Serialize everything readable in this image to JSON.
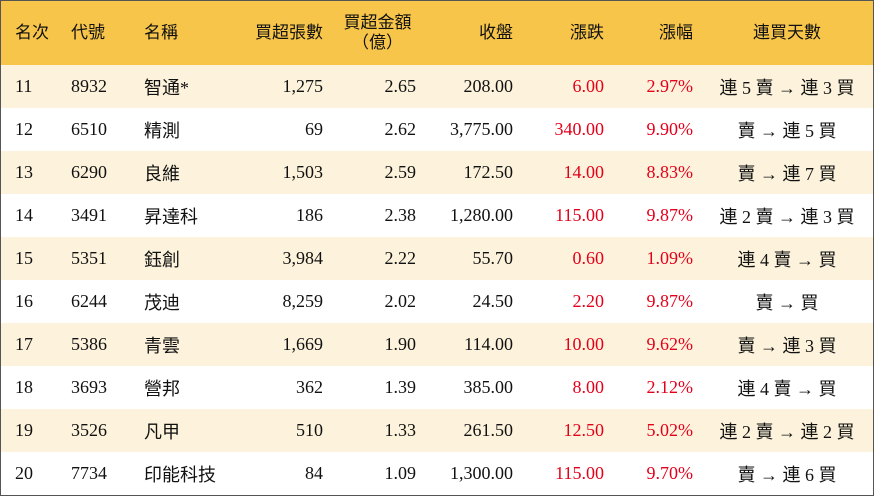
{
  "table": {
    "headers": [
      "名次",
      "代號",
      "名稱",
      "買超張數",
      [
        "買超金額",
        "（億）"
      ],
      "收盤",
      "漲跌",
      "漲幅",
      "連買天數"
    ],
    "rows": [
      [
        "11",
        "8932",
        "智通*",
        "1,275",
        "2.65",
        "208.00",
        "6.00",
        "2.97%",
        "連 5 賣 → 連 3 買"
      ],
      [
        "12",
        "6510",
        "精測",
        "69",
        "2.62",
        "3,775.00",
        "340.00",
        "9.90%",
        "賣 → 連 5 買"
      ],
      [
        "13",
        "6290",
        "良維",
        "1,503",
        "2.59",
        "172.50",
        "14.00",
        "8.83%",
        "賣 → 連 7 買"
      ],
      [
        "14",
        "3491",
        "昇達科",
        "186",
        "2.38",
        "1,280.00",
        "115.00",
        "9.87%",
        "連 2 賣 → 連 3 買"
      ],
      [
        "15",
        "5351",
        "鈺創",
        "3,984",
        "2.22",
        "55.70",
        "0.60",
        "1.09%",
        "連 4 賣 → 買"
      ],
      [
        "16",
        "6244",
        "茂迪",
        "8,259",
        "2.02",
        "24.50",
        "2.20",
        "9.87%",
        "賣 → 買"
      ],
      [
        "17",
        "5386",
        "青雲",
        "1,669",
        "1.90",
        "114.00",
        "10.00",
        "9.62%",
        "賣 → 連 3 買"
      ],
      [
        "18",
        "3693",
        "營邦",
        "362",
        "1.39",
        "385.00",
        "8.00",
        "2.12%",
        "連 4 賣 → 買"
      ],
      [
        "19",
        "3526",
        "凡甲",
        "510",
        "1.33",
        "261.50",
        "12.50",
        "5.02%",
        "連 2 賣 → 連 2 買"
      ],
      [
        "20",
        "7734",
        "印能科技",
        "84",
        "1.09",
        "1,300.00",
        "115.00",
        "9.70%",
        "賣 → 連 6 買"
      ]
    ]
  }
}
